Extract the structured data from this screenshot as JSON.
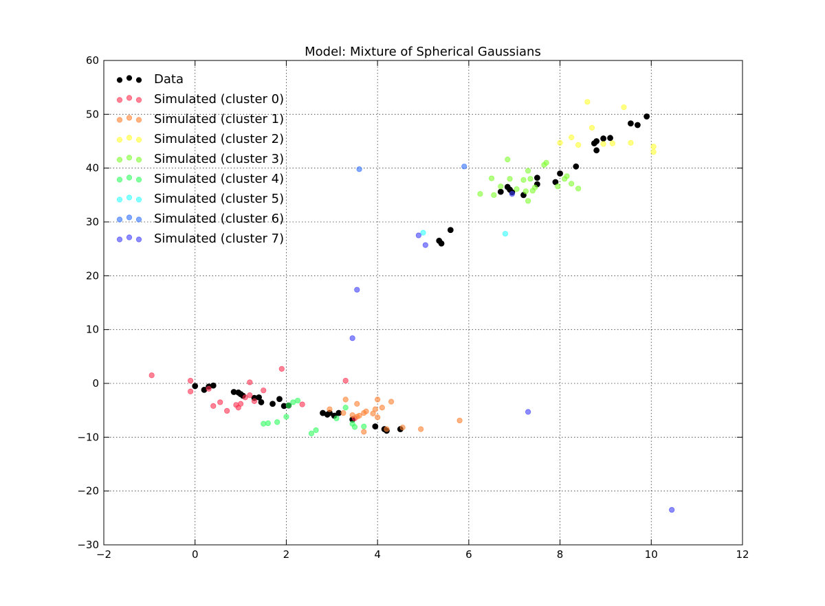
{
  "chart_data": {
    "type": "scatter",
    "title": "Model: Mixture of Spherical Gaussians",
    "xlim": [
      -2,
      12
    ],
    "ylim": [
      -30,
      60
    ],
    "xticks": [
      -2,
      0,
      2,
      4,
      6,
      8,
      10,
      12
    ],
    "yticks": [
      -30,
      -20,
      -10,
      0,
      10,
      20,
      30,
      40,
      50,
      60
    ],
    "grid": true,
    "legend_position": "top-left",
    "series": [
      {
        "name": "Data",
        "color": "#000000",
        "points": [
          [
            0.0,
            -0.5
          ],
          [
            0.2,
            -1.2
          ],
          [
            0.3,
            -0.6
          ],
          [
            0.4,
            -0.4
          ],
          [
            0.85,
            -1.6
          ],
          [
            0.95,
            -1.7
          ],
          [
            1.0,
            -2.0
          ],
          [
            1.05,
            -2.3
          ],
          [
            1.3,
            -2.7
          ],
          [
            1.4,
            -2.6
          ],
          [
            1.45,
            -3.5
          ],
          [
            1.7,
            -3.8
          ],
          [
            1.85,
            -2.9
          ],
          [
            1.95,
            -4.2
          ],
          [
            2.05,
            -4.1
          ],
          [
            2.8,
            -5.5
          ],
          [
            2.9,
            -5.8
          ],
          [
            2.95,
            -5.5
          ],
          [
            3.05,
            -6.0
          ],
          [
            3.15,
            -5.5
          ],
          [
            3.45,
            -6.7
          ],
          [
            3.95,
            -8.0
          ],
          [
            4.15,
            -8.5
          ],
          [
            4.2,
            -8.8
          ],
          [
            4.5,
            -8.5
          ],
          [
            5.35,
            26.5
          ],
          [
            5.4,
            26.0
          ],
          [
            5.6,
            28.5
          ],
          [
            6.7,
            35.6
          ],
          [
            6.85,
            36.5
          ],
          [
            6.9,
            36.0
          ],
          [
            6.95,
            35.5
          ],
          [
            7.2,
            35.0
          ],
          [
            7.5,
            38.2
          ],
          [
            7.5,
            37.0
          ],
          [
            7.9,
            37.4
          ],
          [
            8.0,
            39.0
          ],
          [
            8.35,
            40.3
          ],
          [
            8.75,
            44.6
          ],
          [
            8.8,
            45.0
          ],
          [
            8.8,
            43.3
          ],
          [
            8.95,
            45.5
          ],
          [
            9.1,
            45.6
          ],
          [
            9.55,
            48.3
          ],
          [
            9.7,
            48.0
          ],
          [
            9.9,
            49.6
          ]
        ]
      },
      {
        "name": "Simulated (cluster 0)",
        "color": "#ff3050",
        "points": [
          [
            -0.95,
            1.5
          ],
          [
            -0.1,
            0.5
          ],
          [
            -0.1,
            -1.5
          ],
          [
            0.3,
            -1.0
          ],
          [
            0.4,
            -4.2
          ],
          [
            0.55,
            -3.5
          ],
          [
            0.7,
            -5.1
          ],
          [
            0.9,
            -4.0
          ],
          [
            0.95,
            -4.5
          ],
          [
            1.0,
            -3.8
          ],
          [
            1.1,
            -2.6
          ],
          [
            1.2,
            -2.2
          ],
          [
            1.2,
            0.2
          ],
          [
            1.3,
            -3.3
          ],
          [
            1.5,
            -1.3
          ],
          [
            1.9,
            2.7
          ],
          [
            2.35,
            -3.9
          ],
          [
            3.3,
            0.5
          ],
          [
            3.5,
            -6.5
          ]
        ]
      },
      {
        "name": "Simulated (cluster 1)",
        "color": "#ff8030",
        "points": [
          [
            2.95,
            -4.8
          ],
          [
            3.3,
            -3.0
          ],
          [
            3.45,
            -5.9
          ],
          [
            3.55,
            -6.2
          ],
          [
            3.6,
            -6.0
          ],
          [
            3.55,
            -3.8
          ],
          [
            3.7,
            -5.5
          ],
          [
            3.75,
            -5.2
          ],
          [
            3.7,
            -9.0
          ],
          [
            3.9,
            -5.6
          ],
          [
            3.95,
            -4.8
          ],
          [
            4.0,
            -3.0
          ],
          [
            4.0,
            -6.3
          ],
          [
            4.1,
            -4.5
          ],
          [
            4.2,
            -8.5
          ],
          [
            4.3,
            -3.4
          ],
          [
            4.55,
            -8.2
          ],
          [
            4.95,
            -8.5
          ],
          [
            5.8,
            -6.9
          ],
          [
            3.25,
            -5.5
          ]
        ]
      },
      {
        "name": "Simulated (cluster 2)",
        "color": "#ffff30",
        "points": [
          [
            8.0,
            44.7
          ],
          [
            8.25,
            45.7
          ],
          [
            8.4,
            44.3
          ],
          [
            8.6,
            52.3
          ],
          [
            8.7,
            47.5
          ],
          [
            8.95,
            44.5
          ],
          [
            9.15,
            44.6
          ],
          [
            9.4,
            51.3
          ],
          [
            9.55,
            44.7
          ],
          [
            10.05,
            43.0
          ],
          [
            10.05,
            44.0
          ]
        ]
      },
      {
        "name": "Simulated (cluster 3)",
        "color": "#80ff30",
        "points": [
          [
            6.25,
            35.2
          ],
          [
            6.5,
            38.1
          ],
          [
            6.55,
            35.0
          ],
          [
            6.7,
            36.6
          ],
          [
            6.85,
            41.6
          ],
          [
            6.9,
            38.0
          ],
          [
            7.05,
            36.1
          ],
          [
            7.2,
            37.8
          ],
          [
            7.25,
            35.7
          ],
          [
            7.3,
            33.9
          ],
          [
            7.3,
            39.5
          ],
          [
            7.35,
            38.0
          ],
          [
            7.4,
            35.8
          ],
          [
            7.45,
            36.4
          ],
          [
            7.65,
            40.6
          ],
          [
            7.7,
            41.0
          ],
          [
            7.95,
            36.6
          ],
          [
            8.1,
            38.0
          ],
          [
            8.15,
            38.5
          ],
          [
            8.25,
            37.1
          ],
          [
            8.4,
            36.2
          ]
        ]
      },
      {
        "name": "Simulated (cluster 4)",
        "color": "#30ff60",
        "points": [
          [
            1.5,
            -7.5
          ],
          [
            1.6,
            -7.4
          ],
          [
            1.8,
            -7.2
          ],
          [
            2.0,
            -6.2
          ],
          [
            2.05,
            -4.1
          ],
          [
            2.15,
            -3.5
          ],
          [
            2.25,
            -3.2
          ],
          [
            2.55,
            -9.3
          ],
          [
            2.65,
            -8.7
          ],
          [
            3.1,
            -6.5
          ],
          [
            3.3,
            -4.5
          ],
          [
            3.45,
            -7.5
          ],
          [
            3.5,
            -8.1
          ],
          [
            3.7,
            -8.0
          ]
        ]
      },
      {
        "name": "Simulated (cluster 5)",
        "color": "#30ffff",
        "points": [
          [
            5.0,
            28.0
          ],
          [
            6.8,
            27.8
          ]
        ]
      },
      {
        "name": "Simulated (cluster 6)",
        "color": "#3070ff",
        "points": [
          [
            3.6,
            39.8
          ],
          [
            5.9,
            40.3
          ]
        ]
      },
      {
        "name": "Simulated (cluster 7)",
        "color": "#4040ff",
        "points": [
          [
            3.45,
            8.4
          ],
          [
            3.55,
            17.4
          ],
          [
            4.9,
            27.5
          ],
          [
            5.05,
            25.7
          ],
          [
            6.95,
            35.2
          ],
          [
            7.3,
            -5.3
          ],
          [
            10.45,
            -23.5
          ]
        ]
      }
    ]
  }
}
